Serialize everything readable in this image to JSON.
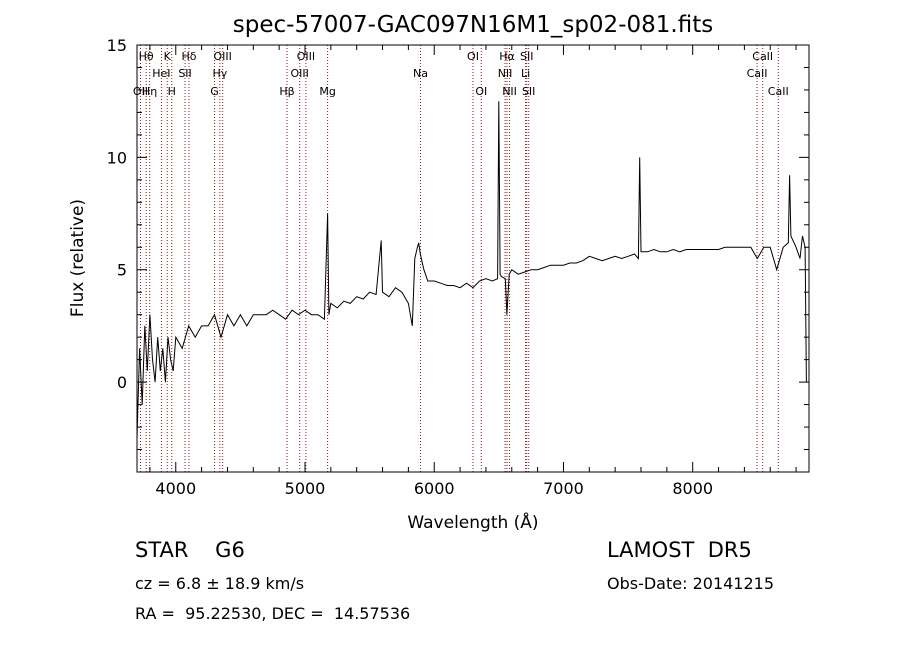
{
  "chart_data": {
    "type": "line",
    "title": "spec-57007-GAC097N16M1_sp02-081.fits",
    "xlabel": "Wavelength (Å)",
    "ylabel": "Flux (relative)",
    "xlim": [
      3700,
      8900
    ],
    "ylim": [
      -4,
      15
    ],
    "x_ticks": [
      4000,
      5000,
      6000,
      7000,
      8000
    ],
    "y_ticks": [
      0,
      5,
      10,
      15
    ],
    "series": [
      {
        "x": [
          3700,
          3720,
          3740,
          3760,
          3780,
          3800,
          3820,
          3840,
          3860,
          3880,
          3900,
          3920,
          3940,
          3960,
          3980,
          4000,
          4050,
          4100,
          4150,
          4200,
          4250,
          4300,
          4350,
          4400,
          4450,
          4500,
          4550,
          4600,
          4650,
          4700,
          4750,
          4800,
          4850,
          4900,
          4950,
          5000,
          5050,
          5100,
          5150,
          5175,
          5185,
          5200,
          5250,
          5300,
          5350,
          5400,
          5450,
          5500,
          5550,
          5590,
          5600,
          5650,
          5700,
          5750,
          5800,
          5830,
          5850,
          5870,
          5880,
          5890,
          5900,
          5920,
          5950,
          6000,
          6050,
          6100,
          6150,
          6200,
          6250,
          6300,
          6350,
          6400,
          6450,
          6490,
          6500,
          6510,
          6520,
          6550,
          6562,
          6580,
          6600,
          6650,
          6700,
          6750,
          6800,
          6850,
          6900,
          6950,
          7000,
          7050,
          7100,
          7150,
          7200,
          7250,
          7300,
          7350,
          7400,
          7450,
          7500,
          7550,
          7580,
          7590,
          7600,
          7650,
          7700,
          7750,
          7800,
          7850,
          7900,
          7950,
          8000,
          8050,
          8100,
          8150,
          8200,
          8250,
          8300,
          8350,
          8400,
          8450,
          8500,
          8550,
          8600,
          8650,
          8700,
          8740,
          8750,
          8760,
          8800,
          8830,
          8850,
          8870,
          8880
        ],
        "y": [
          -2.5,
          1.5,
          -1.0,
          2.5,
          0.5,
          3.0,
          1.0,
          0.0,
          2.0,
          0.5,
          1.5,
          0.0,
          2.0,
          1.0,
          0.5,
          2.0,
          1.5,
          2.5,
          2.0,
          2.5,
          2.5,
          3.0,
          2.0,
          3.0,
          2.5,
          3.0,
          2.5,
          3.0,
          3.0,
          3.0,
          3.2,
          3.0,
          2.8,
          3.2,
          3.0,
          3.2,
          3.0,
          3.0,
          2.8,
          7.5,
          3.0,
          3.5,
          3.3,
          3.6,
          3.5,
          3.8,
          3.7,
          4.0,
          3.9,
          6.3,
          4.0,
          3.8,
          4.2,
          4.0,
          3.5,
          2.5,
          5.5,
          6.0,
          6.2,
          5.8,
          5.5,
          5.0,
          4.5,
          4.5,
          4.4,
          4.3,
          4.3,
          4.2,
          4.4,
          4.2,
          4.5,
          4.6,
          4.5,
          4.6,
          12.5,
          4.8,
          4.7,
          4.6,
          3.0,
          4.8,
          5.0,
          4.8,
          4.9,
          5.0,
          5.0,
          5.1,
          5.2,
          5.2,
          5.2,
          5.3,
          5.3,
          5.4,
          5.6,
          5.5,
          5.4,
          5.5,
          5.6,
          5.5,
          5.6,
          5.7,
          5.5,
          10.0,
          5.8,
          5.8,
          5.9,
          5.8,
          5.8,
          5.9,
          5.8,
          5.9,
          5.9,
          5.9,
          5.9,
          5.9,
          5.9,
          6.0,
          6.0,
          6.0,
          6.0,
          6.0,
          5.5,
          6.0,
          6.0,
          5.0,
          6.0,
          6.2,
          9.2,
          6.5,
          6.0,
          5.5,
          6.5,
          6.0,
          0.0
        ]
      }
    ],
    "lines": [
      {
        "wl": 3727,
        "label": "OII",
        "row": 2
      },
      {
        "wl": 3771,
        "label": "Hθ",
        "row": 0
      },
      {
        "wl": 3798,
        "label": "Hη",
        "row": 2
      },
      {
        "wl": 3889,
        "label": "HeI",
        "row": 1
      },
      {
        "wl": 3934,
        "label": "K",
        "row": 0
      },
      {
        "wl": 3969,
        "label": "H",
        "row": 2
      },
      {
        "wl": 4072,
        "label": "SII",
        "row": 1
      },
      {
        "wl": 4102,
        "label": "Hδ",
        "row": 0
      },
      {
        "wl": 4300,
        "label": "G",
        "row": 2
      },
      {
        "wl": 4341,
        "label": "Hγ",
        "row": 1
      },
      {
        "wl": 4363,
        "label": "OIII",
        "row": 0
      },
      {
        "wl": 4861,
        "label": "Hβ",
        "row": 2
      },
      {
        "wl": 4959,
        "label": "OIII",
        "row": 1
      },
      {
        "wl": 5007,
        "label": "OIII",
        "row": 0
      },
      {
        "wl": 5175,
        "label": "Mg",
        "row": 2
      },
      {
        "wl": 5894,
        "label": "Na",
        "row": 1
      },
      {
        "wl": 6300,
        "label": "OI",
        "row": 0
      },
      {
        "wl": 6364,
        "label": "OI",
        "row": 2
      },
      {
        "wl": 6548,
        "label": "NII",
        "row": 1
      },
      {
        "wl": 6563,
        "label": "Hα",
        "row": 0
      },
      {
        "wl": 6583,
        "label": "NII",
        "row": 2
      },
      {
        "wl": 6707,
        "label": "Li",
        "row": 1
      },
      {
        "wl": 6716,
        "label": "SII",
        "row": 0
      },
      {
        "wl": 6731,
        "label": "SII",
        "row": 2
      },
      {
        "wl": 8498,
        "label": "CaII",
        "row": 1
      },
      {
        "wl": 8542,
        "label": "CaII",
        "row": 0
      },
      {
        "wl": 8662,
        "label": "CaII",
        "row": 2
      }
    ]
  },
  "info": {
    "object_class": "STAR    G6",
    "survey": "LAMOST  DR5",
    "redshift": "cz = 6.8 ± 18.9 km/s",
    "obs_date": "Obs-Date: 20141215",
    "coords": "RA =  95.22530, DEC =  14.57536"
  },
  "colors": {
    "spectrum": "#000000",
    "line_markers": "#8b1a1a"
  }
}
